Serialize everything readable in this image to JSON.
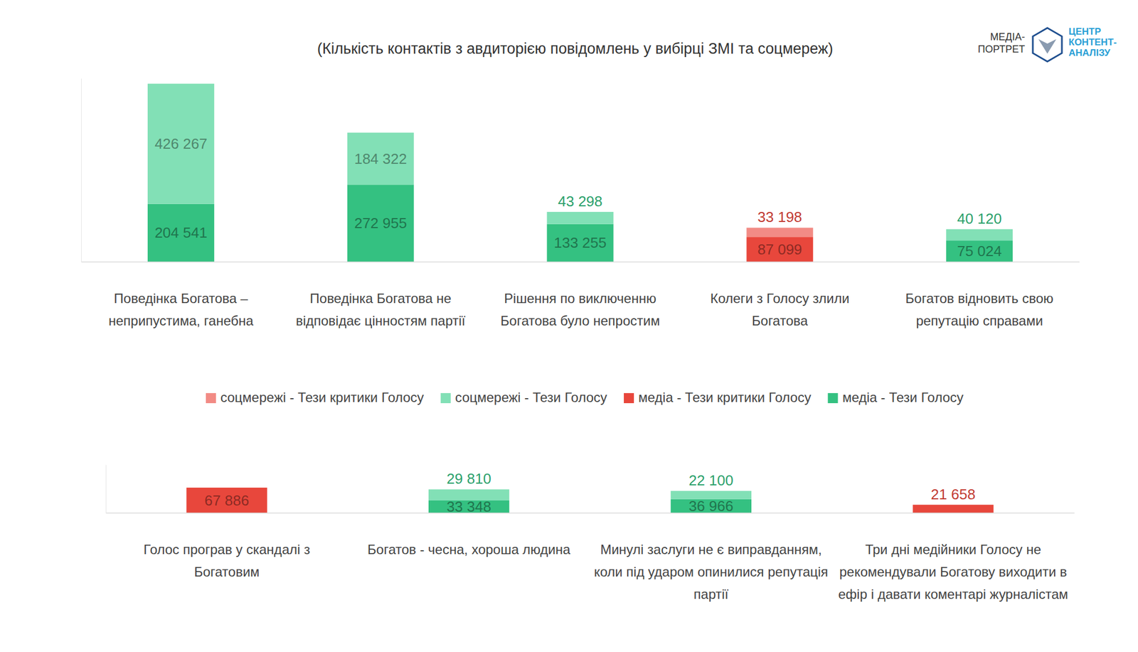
{
  "chart_data": [
    {
      "type": "bar",
      "title": "(Кількість контактів з авдиторією повідомлень у вибірці ЗМІ та соцмереж)",
      "annotations": [
        "МЕДІА-ПОРТРЕТ",
        "ЦЕНТР КОНТЕНТ-АНАЛІЗУ"
      ],
      "stacked": true,
      "data_labels": true,
      "tick_labels": false,
      "legend": "bottom",
      "ylim": [
        0,
        650000
      ],
      "categories": [
        "Поведінка Богатова – неприпустима, ганебна",
        "Поведінка Богатова не відповідає цінностям партії",
        "Рішення по виключенню Богатова було непростим",
        "Колеги з Голосу злили Богатова",
        "Богатов відновить свою репутацію справами"
      ],
      "series": [
        {
          "name": "соцмережі - Тези критики Голосу",
          "color": "#f28b85",
          "values": [
            null,
            null,
            null,
            33198,
            null
          ],
          "value_labels": [
            null,
            null,
            null,
            "33 198",
            null
          ]
        },
        {
          "name": "соцмережі - Тези Голосу",
          "color": "#82e0b6",
          "values": [
            426267,
            184322,
            43298,
            null,
            40120
          ],
          "value_labels": [
            "426 267",
            "184 322",
            "43 298",
            null,
            "40 120"
          ]
        },
        {
          "name": "медіа - Тези критики Голосу",
          "color": "#e8473c",
          "values": [
            null,
            null,
            null,
            87099,
            null
          ],
          "value_labels": [
            null,
            null,
            null,
            "87 099",
            null
          ]
        },
        {
          "name": "медіа - Тези Голосу",
          "color": "#34c181",
          "values": [
            204541,
            272955,
            133255,
            null,
            75024
          ],
          "value_labels": [
            "204 541",
            "272 955",
            "133 255",
            null,
            "75 024"
          ]
        }
      ]
    },
    {
      "type": "bar",
      "stacked": true,
      "data_labels": true,
      "tick_labels": false,
      "ylim": [
        0,
        130000
      ],
      "categories": [
        "Голос програв у скандалі з Богатовим",
        "Богатов - чесна, хороша людина",
        "Минулі заслуги не є виправданням, коли під ударом опинилися репутація партії",
        "Три дні медійники Голосу не рекомендували Богатову виходити в ефір і давати коментарі журналістам"
      ],
      "series": [
        {
          "color": "#82e0b6",
          "values": [
            null,
            29810,
            22100,
            null
          ],
          "value_labels": [
            null,
            "29 810",
            "22 100",
            null
          ]
        },
        {
          "color": "#e8473c",
          "values": [
            67886,
            null,
            null,
            21658
          ],
          "value_labels": [
            "67 886",
            null,
            null,
            "21 658"
          ]
        },
        {
          "color": "#34c181",
          "values": [
            null,
            33348,
            36966,
            null
          ],
          "value_labels": [
            null,
            "33 348",
            "36 966",
            null
          ]
        }
      ]
    }
  ]
}
